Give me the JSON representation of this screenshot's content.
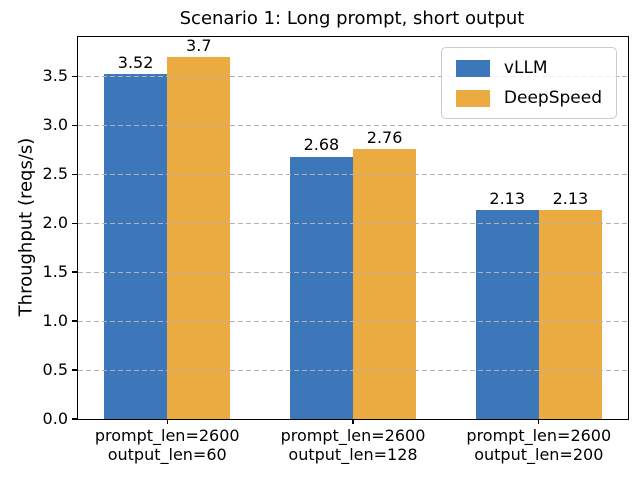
{
  "chart_data": {
    "type": "bar",
    "title": "Scenario 1: Long prompt, short output",
    "ylabel": "Throughput (reqs/s)",
    "xlabel": "",
    "categories": [
      [
        "prompt_len=2600",
        "output_len=60"
      ],
      [
        "prompt_len=2600",
        "output_len=128"
      ],
      [
        "prompt_len=2600",
        "output_len=200"
      ]
    ],
    "series": [
      {
        "name": "vLLM",
        "color": "#3b77b9",
        "values": [
          3.52,
          2.68,
          2.13
        ],
        "value_labels": [
          "3.52",
          "2.68",
          "2.13"
        ]
      },
      {
        "name": "DeepSpeed",
        "color": "#ecab41",
        "values": [
          3.7,
          2.76,
          2.13
        ],
        "value_labels": [
          "3.7",
          "2.76",
          "2.13"
        ]
      }
    ],
    "yticks": [
      0.0,
      0.5,
      1.0,
      1.5,
      2.0,
      2.5,
      3.0,
      3.5
    ],
    "ytick_labels": [
      "0.0",
      "0.5",
      "1.0",
      "1.5",
      "2.0",
      "2.5",
      "3.0",
      "3.5"
    ],
    "ylim": [
      0,
      3.9
    ],
    "xlim": [
      -0.48,
      2.48
    ],
    "bar_width_units": 0.34,
    "grid": {
      "axis": "y",
      "style": "dashed",
      "color": "#b1b1b1",
      "over_bars": true
    },
    "legend": {
      "position": "upper right"
    }
  }
}
